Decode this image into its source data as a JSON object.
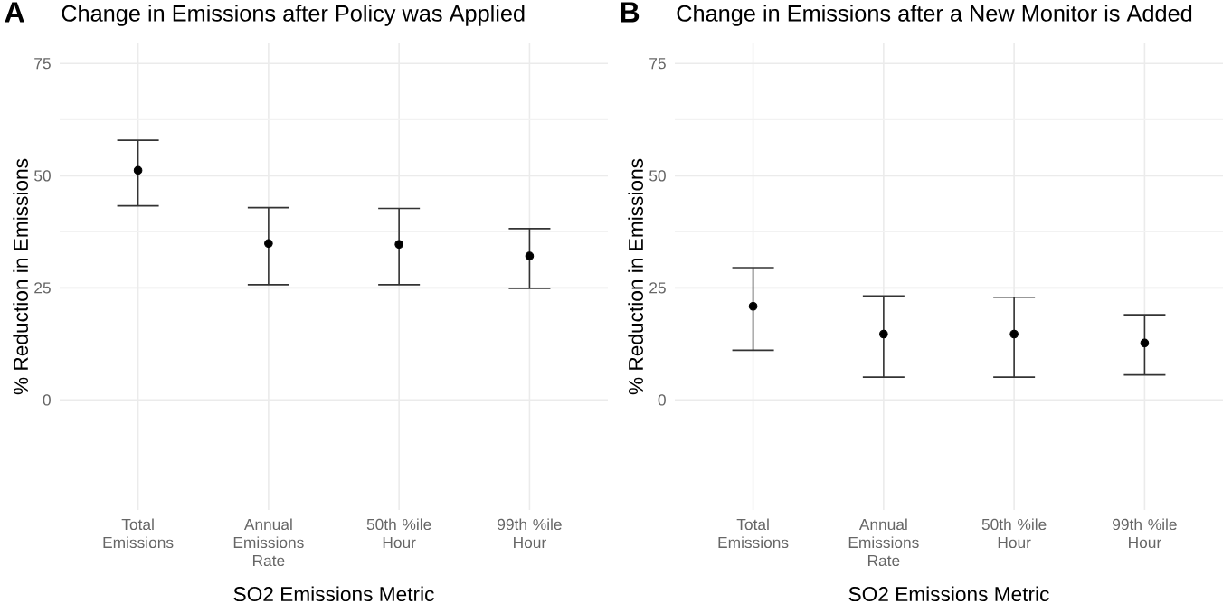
{
  "chart_data": [
    {
      "type": "scatter",
      "title": "Change in Emissions after Policy was Applied",
      "xlabel": "SO2 Emissions Metric",
      "ylabel": "% Reduction in Emissions",
      "annotations": [
        "A"
      ],
      "categories": [
        "Total Emissions",
        "Annual Emissions Rate",
        "50th %ile Hour",
        "99th %ile Hour"
      ],
      "values": [
        51.2,
        34.9,
        34.7,
        32.1
      ],
      "errors": [
        [
          43.3,
          57.9
        ],
        [
          25.7,
          42.9
        ],
        [
          25.7,
          42.7
        ],
        [
          24.9,
          38.2
        ]
      ],
      "color": "#000000",
      "ylim": [
        -24.5,
        79.5
      ],
      "yticks": [
        0,
        25,
        50,
        75
      ],
      "grid": true,
      "marker": "circle"
    },
    {
      "type": "scatter",
      "title": "Change in Emissions after a New Monitor is Added",
      "xlabel": "SO2 Emissions Metric",
      "ylabel": "% Reduction in Emissions",
      "annotations": [
        "B"
      ],
      "categories": [
        "Total Emissions",
        "Annual Emissions Rate",
        "50th %ile Hour",
        "99th %ile Hour"
      ],
      "values": [
        20.9,
        14.7,
        14.7,
        12.7
      ],
      "errors": [
        [
          11.1,
          29.5
        ],
        [
          5.1,
          23.2
        ],
        [
          5.1,
          22.9
        ],
        [
          5.6,
          19.0
        ]
      ],
      "color": "#000000",
      "ylim": [
        -24.5,
        79.5
      ],
      "yticks": [
        0,
        25,
        50,
        75
      ],
      "grid": true,
      "marker": "circle"
    }
  ]
}
